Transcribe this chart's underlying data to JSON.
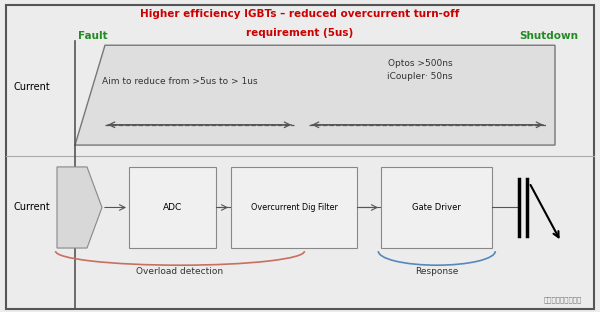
{
  "bg_color": "#ececec",
  "title_line1": "Higher efficiency IGBTs – reduced overcurrent turn-off",
  "title_line2": "requirement (5us)",
  "title_color": "#cc0000",
  "fault_label": "Fault",
  "shutdown_label": "Shutdown",
  "fault_color": "#228B22",
  "shutdown_color": "#228B22",
  "current_label_top": "Current",
  "current_label_bottom": "Current",
  "aim_text": "Aim to reduce from >5us to > 1us",
  "optos_text": "Optos >500ns\niCoupler· 50ns",
  "adc_label": "ADC",
  "filter_label": "Overcurrent Dig Filter",
  "driver_label": "Gate Driver",
  "overload_label": "Overload detection",
  "response_label": "Response",
  "watermark": "电机控制设计加油站",
  "trap": {
    "x": [
      0.13,
      0.185,
      0.93,
      0.93,
      0.13
    ],
    "y": [
      0.54,
      0.87,
      0.87,
      0.54,
      0.54
    ]
  }
}
